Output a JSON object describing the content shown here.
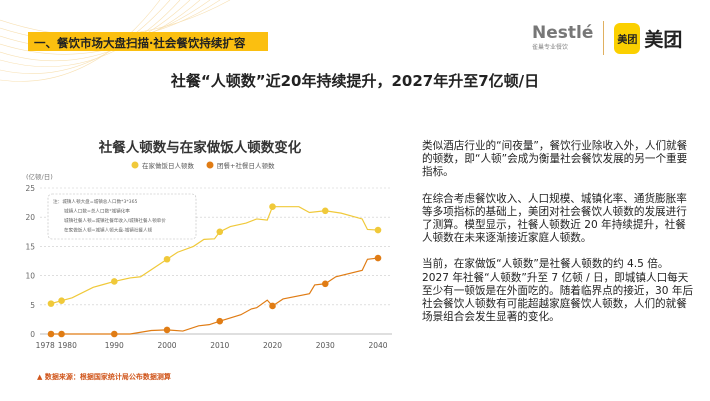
{
  "header": {
    "section_label": "一、餐饮市场大盘扫描·社会餐饮持续扩容",
    "headline": "社餐“人顿数”近20年持续提升，2027年升至7亿顿/日"
  },
  "logos": {
    "nestle": "Nestlé",
    "nestle_sub": "雀巢专业餐饮",
    "meituan_badge": "美团",
    "meituan_text": "美团"
  },
  "colors": {
    "accent": "#fbbf10",
    "home_series": "#f0c93a",
    "social_series": "#e07c14",
    "source": "#d0561c"
  },
  "chart_data": {
    "type": "line",
    "title": "社餐人顿数与在家做饭人顿数变化",
    "ylabel": "(亿顿/日)",
    "ylim": [
      0,
      25
    ],
    "yticks": [
      0,
      5,
      10,
      15,
      20,
      25
    ],
    "xticks": [
      1978,
      1980,
      1990,
      2000,
      2010,
      2020,
      2030,
      2040
    ],
    "grid": "horizontal-dashed",
    "legend_placement": "top",
    "note": [
      "注：城镇人顿大盘=城镇总人口数*3*365",
      "城镇人口数=总人口数*城镇化率",
      "城镇社餐人顿=城镇社餐年收入/城镇社餐人顿单价",
      "在家做饭人顿=城镇人顿大盘-城镇社餐人顿"
    ],
    "series": [
      {
        "name": "在家做饭日人顿数",
        "color": "#f0c93a",
        "x": [
          1978,
          1980,
          1982,
          1986,
          1988,
          1990,
          1993,
          1995,
          2000,
          2002,
          2005,
          2007,
          2009,
          2010,
          2012,
          2015,
          2017,
          2019,
          2020,
          2025,
          2027,
          2030,
          2033,
          2037,
          2038,
          2040
        ],
        "y": [
          5.2,
          5.7,
          6.2,
          8.0,
          8.5,
          9.0,
          9.6,
          9.8,
          12.8,
          14.0,
          15.0,
          16.2,
          16.3,
          17.5,
          18.4,
          19.0,
          19.7,
          19.5,
          21.8,
          21.8,
          20.8,
          21.1,
          20.7,
          19.7,
          17.9,
          17.8
        ],
        "markers": [
          1978,
          1980,
          1990,
          2000,
          2010,
          2020,
          2030,
          2040
        ]
      },
      {
        "name": "团餐+社餐日人顿数",
        "color": "#e07c14",
        "x": [
          1978,
          1993,
          1997,
          2000,
          2003,
          2006,
          2008,
          2010,
          2014,
          2016,
          2017,
          2019,
          2020,
          2022,
          2027,
          2028,
          2030,
          2032,
          2037,
          2038,
          2040
        ],
        "y": [
          0,
          0,
          0.6,
          0.7,
          0.5,
          1.4,
          1.6,
          2.2,
          3.3,
          4.3,
          4.5,
          5.8,
          4.8,
          6.0,
          6.9,
          8.4,
          8.6,
          9.8,
          10.9,
          12.8,
          13.0
        ],
        "markers": [
          1978,
          1980,
          1990,
          2000,
          2010,
          2020,
          2030,
          2040
        ]
      }
    ]
  },
  "source": "▲ 数据来源：根据国家统计局公布数据测算",
  "paragraphs": [
    "类似酒店行业的“间夜量”，餐饮行业除收入外，人们就餐的顿数，即“人顿”会成为衡量社会餐饮发展的另一个重要指标。",
    "在综合考虑餐饮收入、人口规模、城镇化率、通货膨胀率等多项指标的基础上，美团对社会餐饮人顿数的发展进行了测算。模型显示，社餐人顿数近 20 年持续提升，社餐人顿数在未来逐渐接近家庭人顿数。",
    "当前，在家做饭“人顿数”是社餐人顿数的约 4.5 倍。2027 年社餐“人顿数”升至 7 亿顿 / 日，即城镇人口每天至少有一顿饭是在外面吃的。随着临界点的接近，30 年后社会餐饮人顿数有可能超越家庭餐饮人顿数，人们的就餐场景组合会发生显著的变化。"
  ]
}
